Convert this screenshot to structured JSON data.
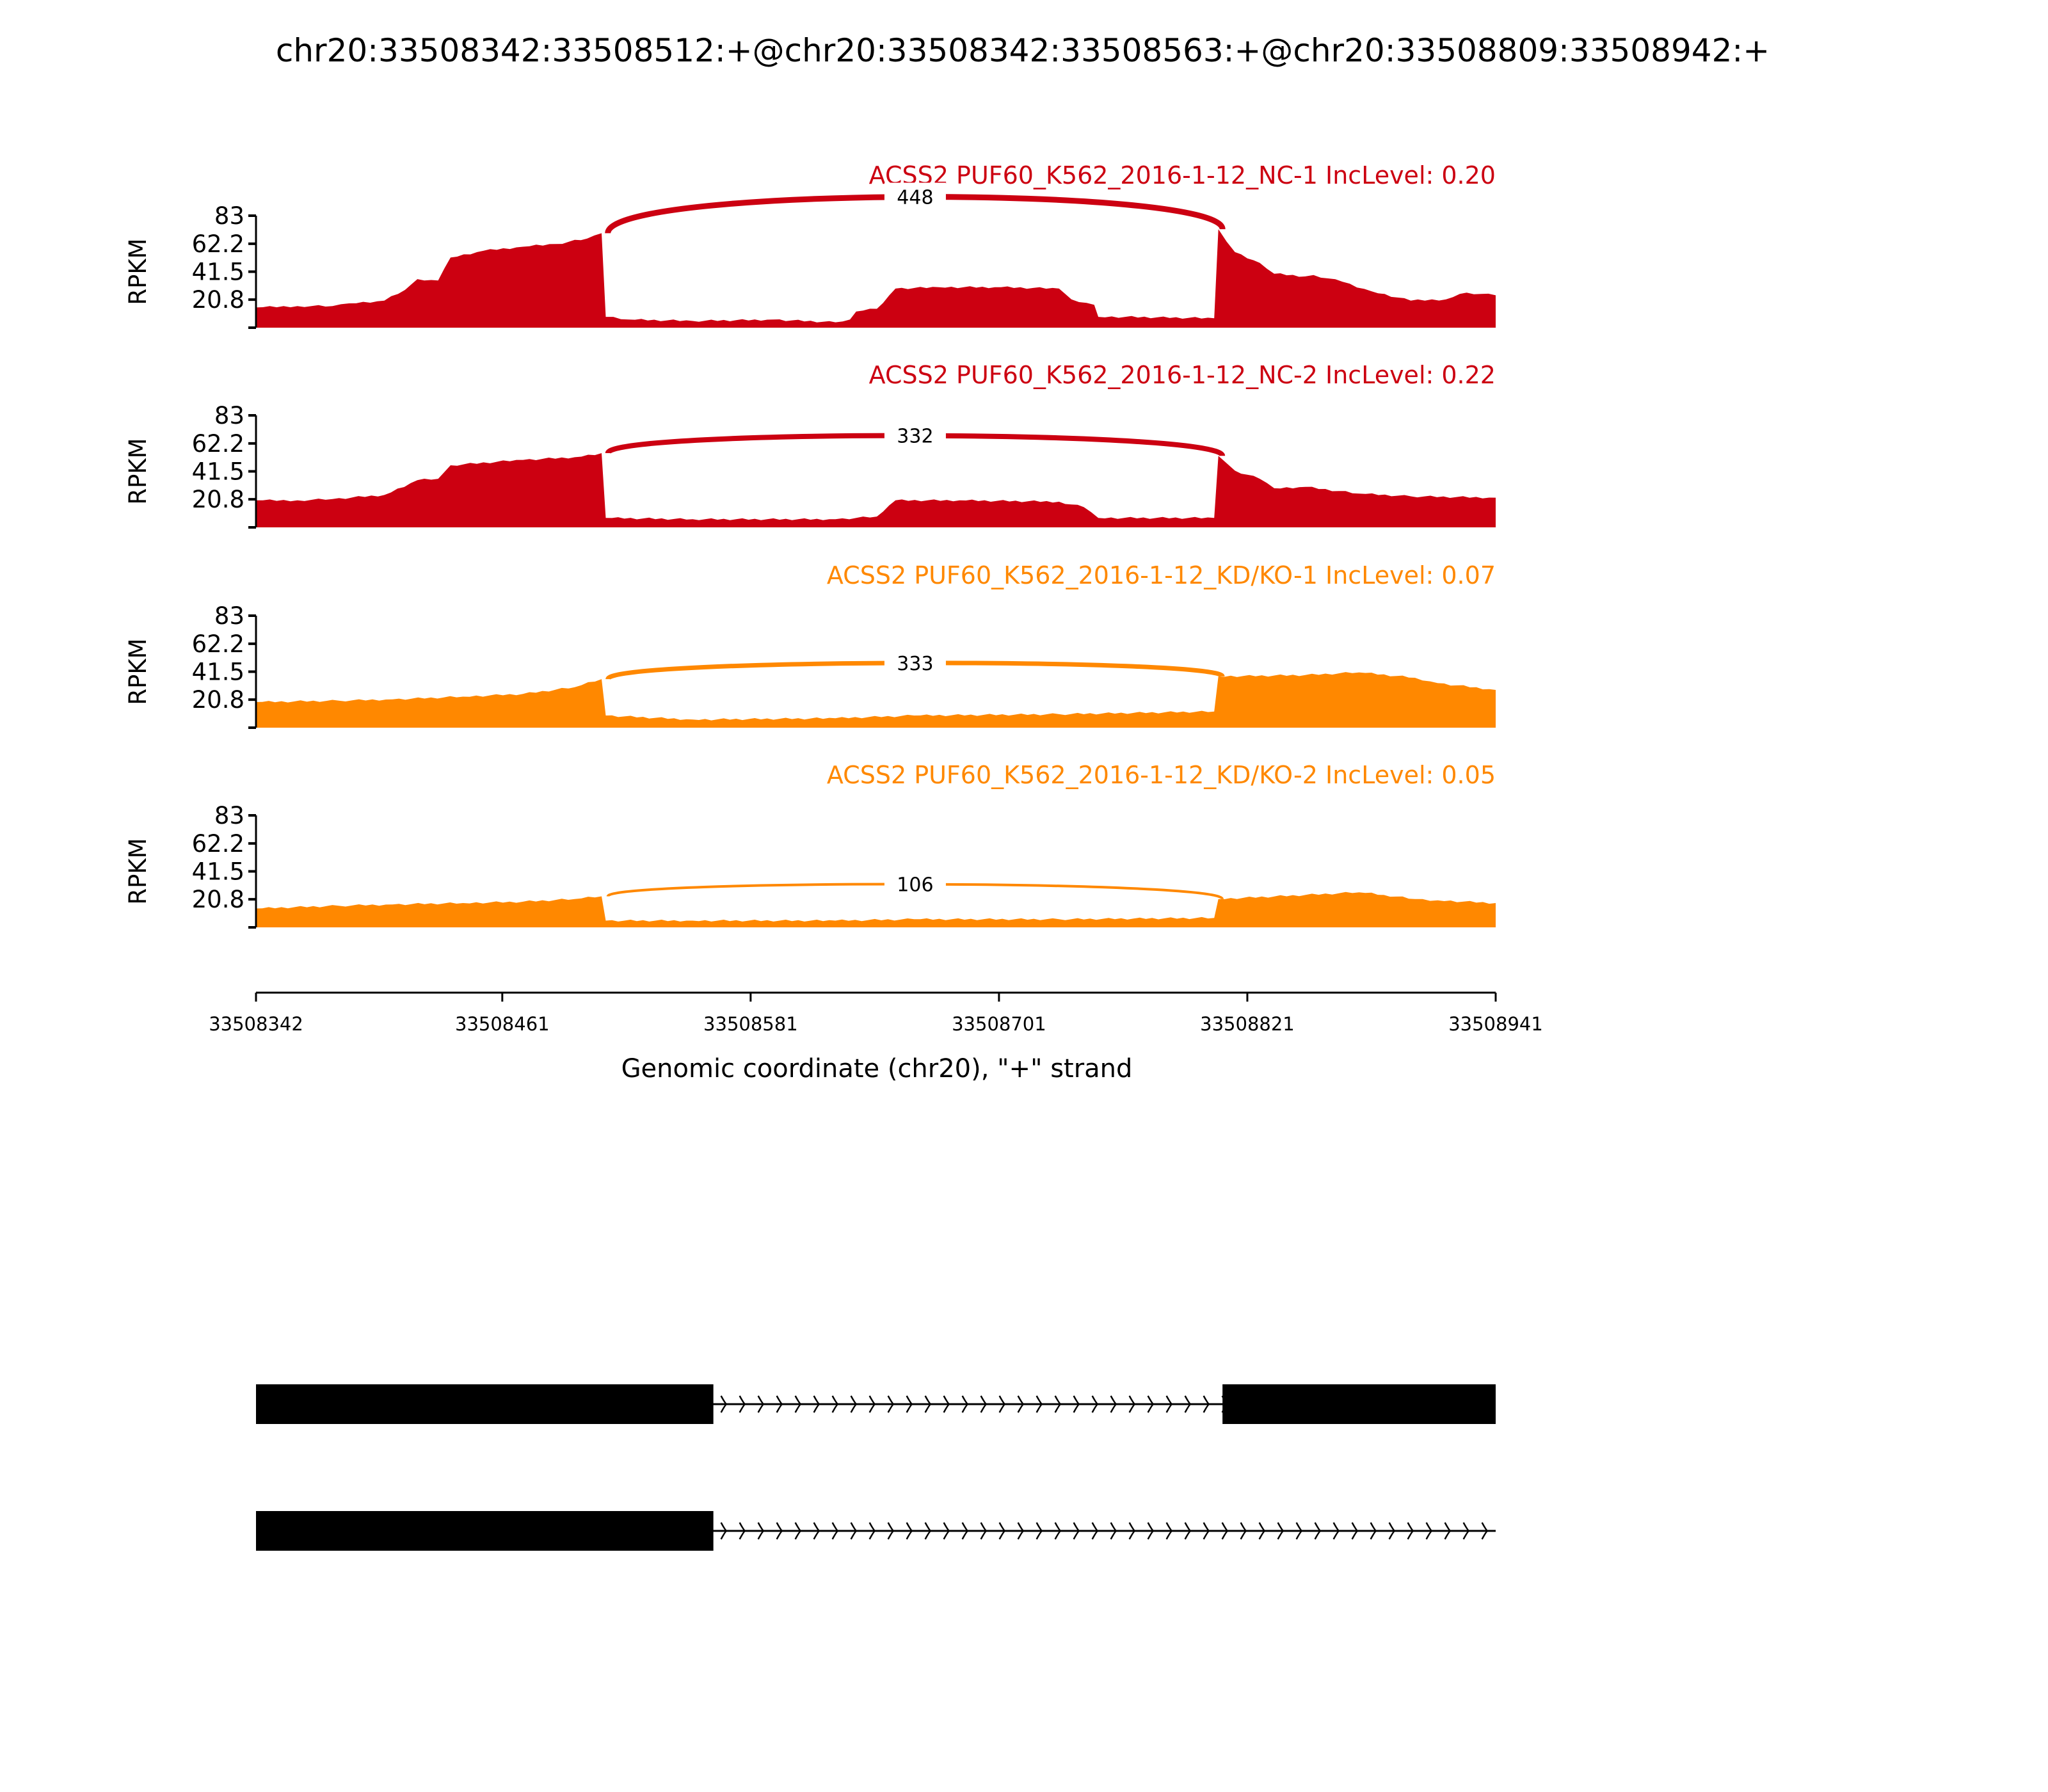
{
  "chart_data": {
    "type": "area",
    "title": "chr20:33508342:33508512:+@chr20:33508342:33508563:+@chr20:33508809:33508942:+",
    "xlabel": "Genomic coordinate (chr20), \"+\" strand",
    "ylabel": "RPKM",
    "xlim": [
      33508342,
      33508941
    ],
    "ylim": [
      0,
      83
    ],
    "xticks": [
      "33508342",
      "33508461",
      "33508581",
      "33508701",
      "33508821",
      "33508941"
    ],
    "yticks": [
      "20.8",
      "41.5",
      "62.2",
      "83"
    ],
    "junction": {
      "donor": 33508512,
      "acceptor": 33508809
    },
    "tracks": [
      {
        "label": "ACSS2 PUF60_K562_2016-1-12_NC-1 IncLevel: 0.20",
        "color": "#cc0011",
        "junction_count": "448",
        "arc_peak": 97,
        "coverage": [
          [
            0,
            15
          ],
          [
            20,
            16
          ],
          [
            37,
            16
          ],
          [
            45,
            18
          ],
          [
            62,
            20
          ],
          [
            72,
            28
          ],
          [
            78,
            36
          ],
          [
            88,
            35
          ],
          [
            94,
            52
          ],
          [
            110,
            57
          ],
          [
            129,
            60
          ],
          [
            145,
            62
          ],
          [
            160,
            66
          ],
          [
            167,
            70
          ],
          [
            169,
            8
          ],
          [
            180,
            6
          ],
          [
            211,
            5
          ],
          [
            250,
            6
          ],
          [
            280,
            4
          ],
          [
            287,
            6
          ],
          [
            290,
            12
          ],
          [
            300,
            14
          ],
          [
            309,
            29
          ],
          [
            330,
            30
          ],
          [
            360,
            30
          ],
          [
            388,
            29
          ],
          [
            394,
            21
          ],
          [
            405,
            17
          ],
          [
            407,
            8
          ],
          [
            420,
            8
          ],
          [
            463,
            7
          ],
          [
            465,
            73
          ],
          [
            473,
            56
          ],
          [
            485,
            48
          ],
          [
            492,
            40
          ],
          [
            507,
            38
          ],
          [
            511,
            39
          ],
          [
            525,
            34
          ],
          [
            539,
            27
          ],
          [
            558,
            20
          ],
          [
            575,
            21
          ],
          [
            585,
            26
          ],
          [
            599,
            24
          ]
        ]
      },
      {
        "label": "ACSS2 PUF60_K562_2016-1-12_NC-2 IncLevel: 0.22",
        "color": "#cc0011",
        "junction_count": "332",
        "arc_peak": 68,
        "coverage": [
          [
            0,
            20
          ],
          [
            20,
            20
          ],
          [
            37,
            21
          ],
          [
            62,
            24
          ],
          [
            78,
            35
          ],
          [
            88,
            36
          ],
          [
            94,
            46
          ],
          [
            129,
            50
          ],
          [
            154,
            52
          ],
          [
            167,
            55
          ],
          [
            169,
            7
          ],
          [
            211,
            6
          ],
          [
            280,
            6
          ],
          [
            300,
            8
          ],
          [
            309,
            20
          ],
          [
            340,
            20
          ],
          [
            388,
            19
          ],
          [
            400,
            15
          ],
          [
            407,
            7
          ],
          [
            463,
            7
          ],
          [
            465,
            53
          ],
          [
            473,
            42
          ],
          [
            485,
            36
          ],
          [
            492,
            29
          ],
          [
            507,
            30
          ],
          [
            533,
            25
          ],
          [
            558,
            23
          ],
          [
            599,
            22
          ]
        ]
      },
      {
        "label": "ACSS2 PUF60_K562_2016-1-12_KD/KO-1 IncLevel: 0.07",
        "color": "#ff8800",
        "junction_count": "333",
        "arc_peak": 48,
        "coverage": [
          [
            0,
            19
          ],
          [
            40,
            20
          ],
          [
            66,
            21
          ],
          [
            100,
            23
          ],
          [
            129,
            25
          ],
          [
            154,
            30
          ],
          [
            167,
            36
          ],
          [
            169,
            9
          ],
          [
            211,
            6
          ],
          [
            280,
            7
          ],
          [
            318,
            9
          ],
          [
            388,
            10
          ],
          [
            463,
            12
          ],
          [
            465,
            38
          ],
          [
            507,
            39
          ],
          [
            533,
            41
          ],
          [
            560,
            37
          ],
          [
            571,
            33
          ],
          [
            599,
            28
          ]
        ]
      },
      {
        "label": "ACSS2 PUF60_K562_2016-1-12_KD/KO-2 IncLevel: 0.05",
        "color": "#ff8800",
        "junction_count": "106",
        "arc_peak": 32,
        "coverage": [
          [
            0,
            14
          ],
          [
            40,
            16
          ],
          [
            66,
            17
          ],
          [
            100,
            18
          ],
          [
            129,
            19
          ],
          [
            154,
            21
          ],
          [
            167,
            23
          ],
          [
            169,
            5
          ],
          [
            211,
            5
          ],
          [
            280,
            5
          ],
          [
            318,
            6
          ],
          [
            388,
            6
          ],
          [
            463,
            7
          ],
          [
            465,
            21
          ],
          [
            507,
            24
          ],
          [
            533,
            26
          ],
          [
            545,
            24
          ],
          [
            560,
            21
          ],
          [
            571,
            20
          ],
          [
            599,
            18
          ]
        ]
      }
    ],
    "gene_models": [
      {
        "exons": [
          [
            33508342,
            33508563
          ],
          [
            33508809,
            33508941
          ]
        ],
        "span": [
          33508342,
          33508941
        ]
      },
      {
        "exons": [
          [
            33508342,
            33508563
          ]
        ],
        "span": [
          33508342,
          33508941
        ]
      }
    ]
  }
}
